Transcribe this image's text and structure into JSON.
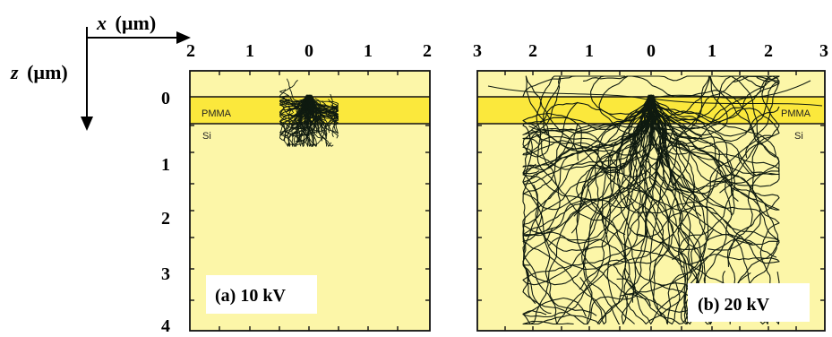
{
  "axes_key": {
    "x_var": "x",
    "x_unit": "(µm)",
    "z_var": "z",
    "z_unit": "(µm)"
  },
  "panels": [
    {
      "id": "a",
      "caption": "(a) 10 kV",
      "x_ticks": [
        "2",
        "1",
        "0",
        "1",
        "2"
      ],
      "x_range_um": [
        -2,
        2
      ],
      "layer_top": "PMMA",
      "layer_bottom": "Si",
      "pmma_thickness_um": 0.4,
      "trajectory_spread_x_um": 0.5,
      "trajectory_max_depth_um": 0.85
    },
    {
      "id": "b",
      "caption": "(b) 20 kV",
      "x_ticks": [
        "3",
        "2",
        "1",
        "0",
        "1",
        "2",
        "3"
      ],
      "x_range_um": [
        -3,
        3
      ],
      "layer_top": "PMMA",
      "layer_bottom": "Si",
      "pmma_thickness_um": 0.4,
      "trajectory_spread_x_um": 2.2,
      "trajectory_max_depth_um": 3.9
    }
  ],
  "z_ticks": [
    "0",
    "1",
    "2",
    "3",
    "4"
  ],
  "z_range_um": [
    0,
    4
  ],
  "colors": {
    "si": "#fcf6a8",
    "pmma": "#fbe83c",
    "trajectory": "#0f1a10",
    "frame": "#111111"
  }
}
